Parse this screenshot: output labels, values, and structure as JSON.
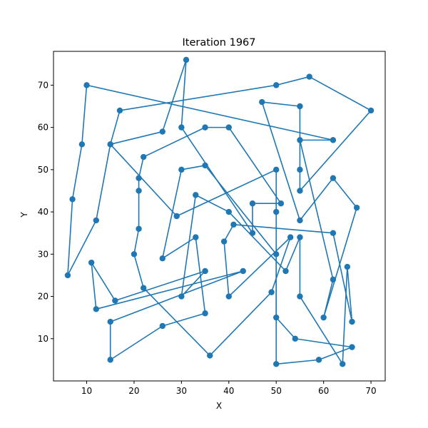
{
  "chart_data": {
    "type": "line",
    "title": "Iteration 1967",
    "xlabel": "X",
    "ylabel": "Y",
    "xlim": [
      3,
      73
    ],
    "ylim": [
      0,
      78
    ],
    "xticks": [
      10,
      20,
      30,
      40,
      50,
      60,
      70
    ],
    "yticks": [
      10,
      20,
      30,
      40,
      50,
      60,
      70
    ],
    "grid": false,
    "legend": "none",
    "color": "#1f77b4",
    "series": [
      {
        "marker": "circle",
        "closed": true,
        "points": [
          [
            10,
            70
          ],
          [
            62,
            57
          ],
          [
            55,
            57
          ],
          [
            62,
            24
          ],
          [
            60,
            15
          ],
          [
            67,
            41
          ],
          [
            62,
            48
          ],
          [
            55,
            38
          ],
          [
            47,
            66
          ],
          [
            55,
            65
          ],
          [
            55,
            50
          ],
          [
            55,
            45
          ],
          [
            70,
            64
          ],
          [
            57,
            72
          ],
          [
            50,
            70
          ],
          [
            17,
            64
          ],
          [
            15,
            56
          ],
          [
            26,
            59
          ],
          [
            31,
            76
          ],
          [
            30,
            60
          ],
          [
            45,
            35
          ],
          [
            45,
            42
          ],
          [
            51,
            42
          ],
          [
            40,
            60
          ],
          [
            35,
            60
          ],
          [
            22,
            53
          ],
          [
            21,
            48
          ],
          [
            21,
            45
          ],
          [
            21,
            36
          ],
          [
            20,
            30
          ],
          [
            22,
            22
          ],
          [
            36,
            6
          ],
          [
            49,
            21
          ],
          [
            53,
            34
          ],
          [
            40,
            20
          ],
          [
            39,
            33
          ],
          [
            41,
            37
          ],
          [
            62,
            35
          ],
          [
            66,
            14
          ],
          [
            65,
            27
          ],
          [
            64,
            4
          ],
          [
            55,
            20
          ],
          [
            55,
            34
          ],
          [
            52,
            26
          ],
          [
            40,
            40
          ],
          [
            33,
            44
          ],
          [
            30,
            20
          ],
          [
            35,
            26
          ],
          [
            16,
            19
          ],
          [
            11,
            28
          ],
          [
            12,
            17
          ],
          [
            43,
            26
          ],
          [
            15,
            14
          ],
          [
            15,
            5
          ],
          [
            26,
            13
          ],
          [
            35,
            16
          ],
          [
            33,
            34
          ],
          [
            26,
            29
          ],
          [
            30,
            50
          ],
          [
            35,
            51
          ],
          [
            50,
            30
          ],
          [
            50,
            15
          ],
          [
            54,
            10
          ],
          [
            66,
            8
          ],
          [
            59,
            5
          ],
          [
            50,
            4
          ],
          [
            50,
            40
          ],
          [
            50,
            50
          ],
          [
            29,
            39
          ],
          [
            15,
            56
          ],
          [
            12,
            38
          ],
          [
            6,
            25
          ],
          [
            7,
            43
          ],
          [
            9,
            56
          ]
        ]
      }
    ]
  }
}
